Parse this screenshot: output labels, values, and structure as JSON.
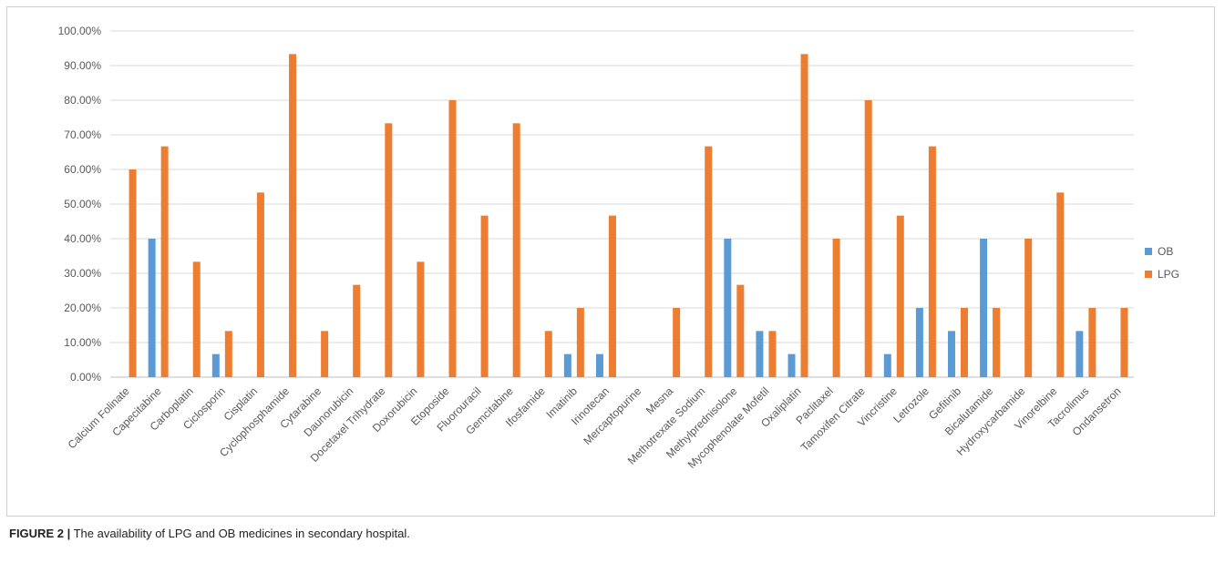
{
  "chart_data": {
    "type": "bar",
    "categories": [
      "Calcium Folinate",
      "Capecitabine",
      "Carboplatin",
      "Ciclosporin",
      "Cisplatin",
      "Cyclophosphamide",
      "Cytarabine",
      "Daunorubicin",
      "Docetaxel Trihydrate",
      "Doxorubicin",
      "Etoposide",
      "Fluorouracil",
      "Gemcitabine",
      "Ifosfamide",
      "Imatinib",
      "Irinotecan",
      "Mercaptopurine",
      "Mesna",
      "Methotrexate Sodium",
      "Methylprednisolone",
      "Mycophenolate Mofetil",
      "Oxaliplatin",
      "Paclitaxel",
      "Tamoxifen Citrate",
      "Vincristine",
      "Letrozole",
      "Gefitinib",
      "Bicalutamide",
      "Hydroxycarbamide",
      "Vinorelbine",
      "Tacrolimus",
      "Ondansetron"
    ],
    "series": [
      {
        "name": "OB",
        "color": "#5b9bd5",
        "values": [
          0,
          40,
          0,
          6.67,
          0,
          0,
          0,
          0,
          0,
          0,
          0,
          0,
          0,
          0,
          6.67,
          6.67,
          0,
          0,
          0,
          40,
          13.33,
          6.67,
          0,
          0,
          6.67,
          20,
          13.33,
          40,
          0,
          0,
          13.33,
          0
        ]
      },
      {
        "name": "LPG",
        "color": "#ed7d31",
        "values": [
          60,
          66.67,
          33.33,
          13.33,
          53.33,
          93.33,
          13.33,
          26.67,
          73.33,
          33.33,
          80,
          46.67,
          73.33,
          13.33,
          20,
          46.67,
          0,
          20,
          66.67,
          26.67,
          13.33,
          93.33,
          40,
          80,
          46.67,
          66.67,
          20,
          20,
          40,
          53.33,
          20,
          20
        ]
      }
    ],
    "yticks": [
      "0.00%",
      "10.00%",
      "20.00%",
      "30.00%",
      "40.00%",
      "50.00%",
      "60.00%",
      "70.00%",
      "80.00%",
      "90.00%",
      "100.00%"
    ],
    "ylim": [
      0,
      100
    ],
    "grid": true,
    "legend": "right"
  },
  "caption": {
    "label": "FIGURE 2 |",
    "text": "The availability of LPG and OB medicines in secondary hospital."
  }
}
